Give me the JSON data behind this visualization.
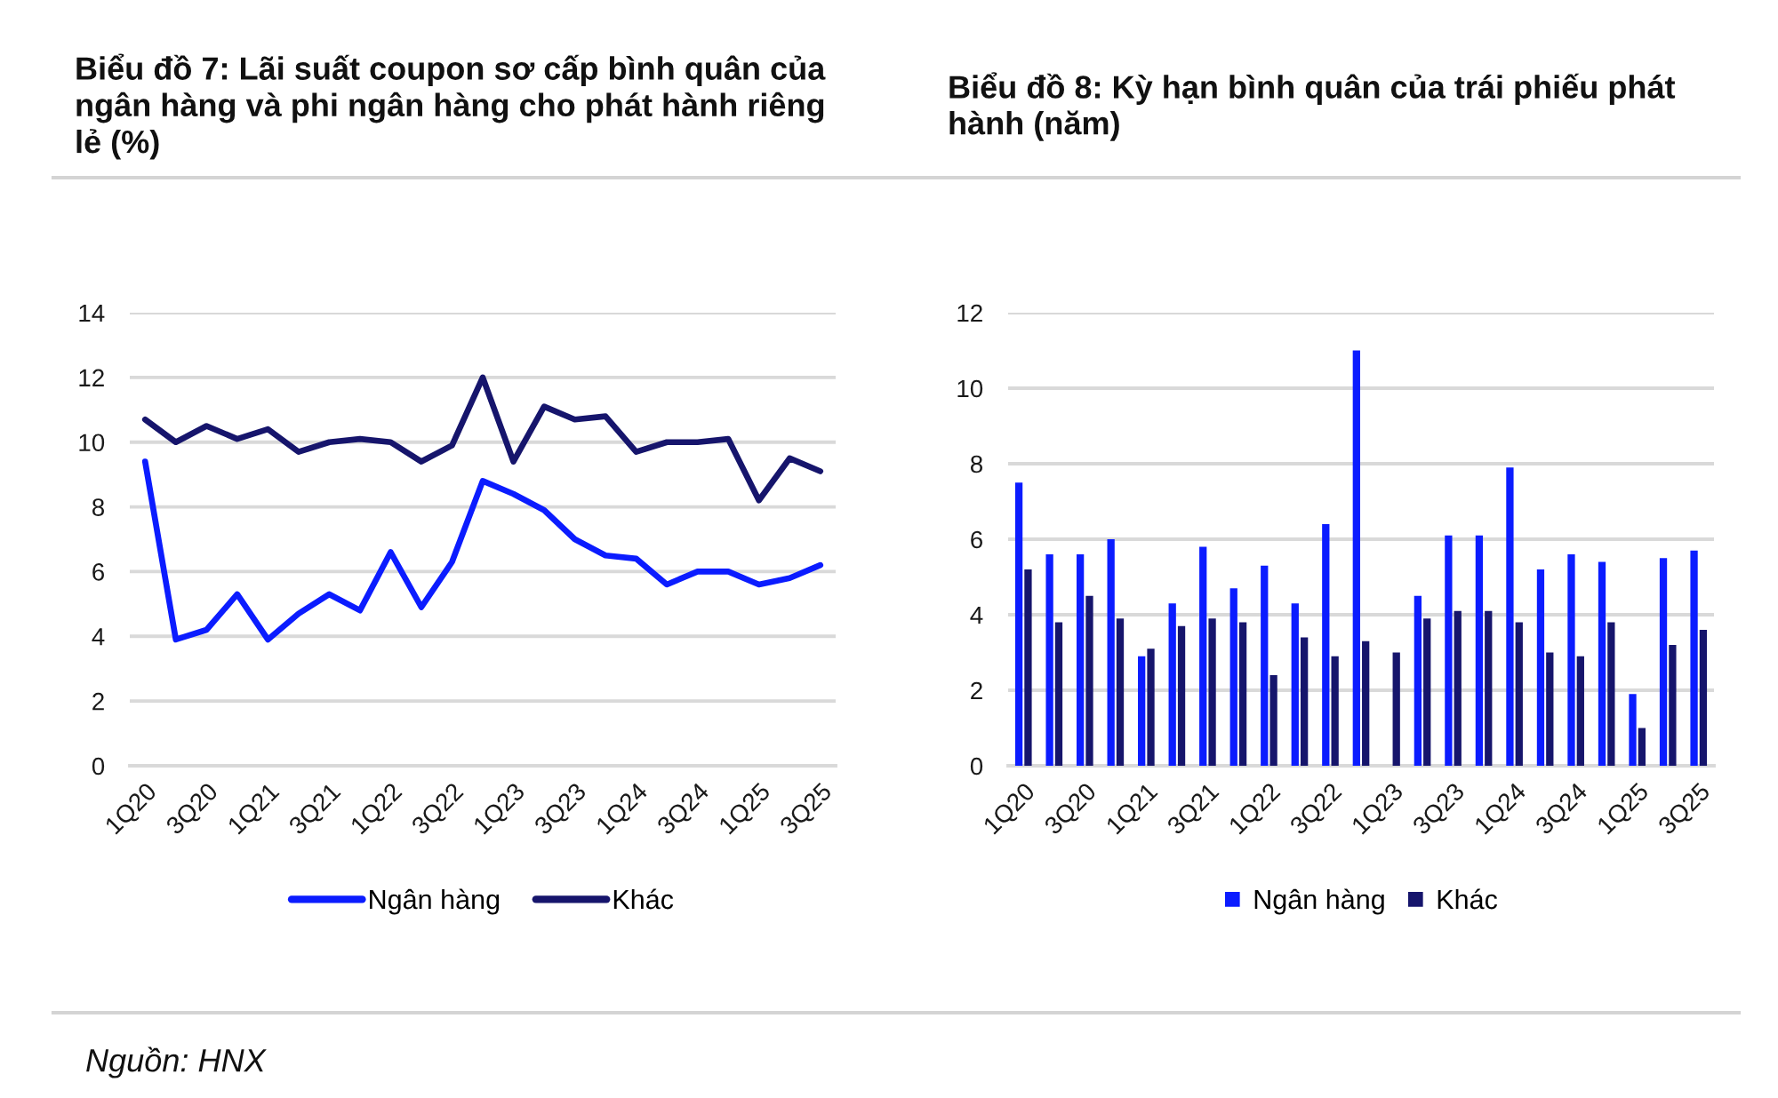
{
  "chart_data": [
    {
      "type": "line",
      "title": "Biểu đồ 7: Lãi suất coupon sơ cấp bình quân của ngân hàng và phi ngân hàng cho phát hành riêng lẻ (%)",
      "categories": [
        "1Q20",
        null,
        "3Q20",
        null,
        "1Q21",
        null,
        "3Q21",
        null,
        "1Q22",
        null,
        "3Q22",
        null,
        "1Q23",
        null,
        "3Q23",
        null,
        "1Q24",
        null,
        "3Q24",
        null,
        "1Q25",
        null,
        "3Q25"
      ],
      "series": [
        {
          "name": "Ngân hàng",
          "color": "#0b1cff",
          "values": [
            9.4,
            3.9,
            4.2,
            5.3,
            3.9,
            4.7,
            5.3,
            4.8,
            6.6,
            4.9,
            6.3,
            8.8,
            8.4,
            7.9,
            7.0,
            6.5,
            6.4,
            5.6,
            6.0,
            6.0,
            5.6,
            5.8,
            6.2
          ]
        },
        {
          "name": "Khác",
          "color": "#16156c",
          "values": [
            10.7,
            10.0,
            10.5,
            10.1,
            10.4,
            9.7,
            10.0,
            10.1,
            10.0,
            9.4,
            9.9,
            12.0,
            9.4,
            11.1,
            10.7,
            10.8,
            9.7,
            10.0,
            10.0,
            10.1,
            8.2,
            9.5,
            9.1
          ]
        }
      ],
      "ylim": [
        0,
        14
      ],
      "yticks": [
        0,
        2,
        4,
        6,
        8,
        10,
        12,
        14
      ],
      "grid": "y",
      "legend": "bottom",
      "line_style": "solid",
      "annotations": [
        "Nguồn: HNX"
      ]
    },
    {
      "type": "bar",
      "title": "Biểu đồ 8: Kỳ hạn bình quân của trái phiếu phát hành (năm)",
      "categories": [
        "1Q20",
        null,
        "3Q20",
        null,
        "1Q21",
        null,
        "3Q21",
        null,
        "1Q22",
        null,
        "3Q22",
        null,
        "1Q23",
        null,
        "3Q23",
        null,
        "1Q24",
        null,
        "3Q24",
        null,
        "1Q25",
        null,
        "3Q25"
      ],
      "series": [
        {
          "name": "Ngân hàng",
          "color": "#0b1cff",
          "values": [
            7.5,
            5.6,
            5.6,
            6.0,
            2.9,
            4.3,
            5.8,
            4.7,
            5.3,
            4.3,
            6.4,
            11.0,
            null,
            4.5,
            6.1,
            6.1,
            7.9,
            5.2,
            5.6,
            5.4,
            1.9,
            5.5,
            5.7
          ]
        },
        {
          "name": "Khác",
          "color": "#16156c",
          "values": [
            5.2,
            3.8,
            4.5,
            3.9,
            3.1,
            3.7,
            3.9,
            3.8,
            2.4,
            3.4,
            2.9,
            3.3,
            3.0,
            3.9,
            4.1,
            4.1,
            3.8,
            3.0,
            2.9,
            3.8,
            1.0,
            3.2,
            3.6
          ]
        }
      ],
      "ylim": [
        0,
        12
      ],
      "yticks": [
        0,
        2,
        4,
        6,
        8,
        10,
        12
      ],
      "grid": "y",
      "legend": "bottom"
    }
  ]
}
